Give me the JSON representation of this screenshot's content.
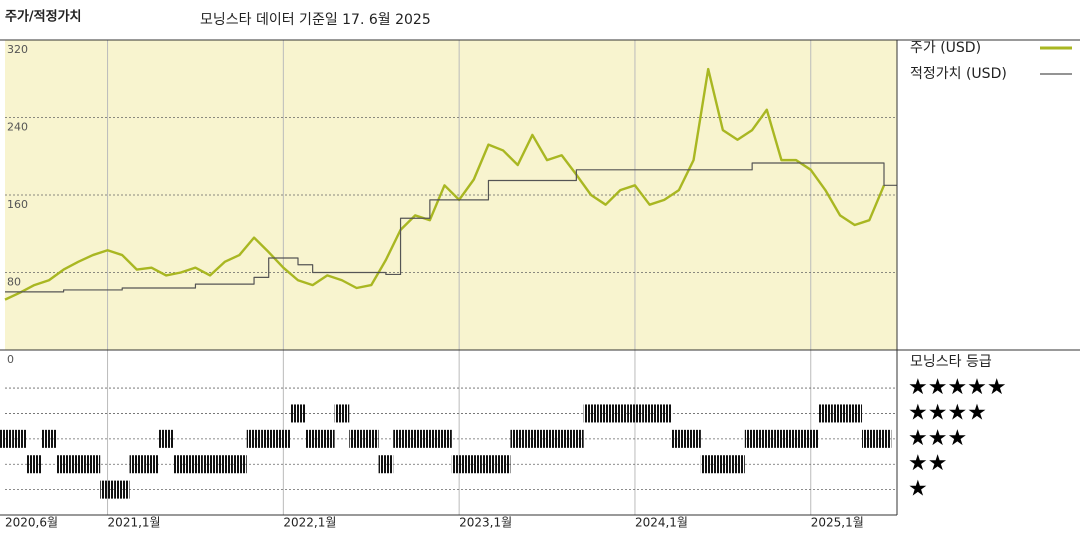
{
  "chart_data": [
    {
      "type": "line",
      "title": "주가/적정가치",
      "subtitle": "모닝스타 데이터 기준일 17. 6월 2025",
      "x": [
        "2020-06",
        "2020-07",
        "2020-08",
        "2020-09",
        "2020-10",
        "2020-11",
        "2020-12",
        "2021-01",
        "2021-02",
        "2021-03",
        "2021-04",
        "2021-05",
        "2021-06",
        "2021-07",
        "2021-08",
        "2021-09",
        "2021-10",
        "2021-11",
        "2021-12",
        "2022-01",
        "2022-02",
        "2022-03",
        "2022-04",
        "2022-05",
        "2022-06",
        "2022-07",
        "2022-08",
        "2022-09",
        "2022-10",
        "2022-11",
        "2022-12",
        "2023-01",
        "2023-02",
        "2023-03",
        "2023-04",
        "2023-05",
        "2023-06",
        "2023-07",
        "2023-08",
        "2023-09",
        "2023-10",
        "2023-11",
        "2023-12",
        "2024-01",
        "2024-02",
        "2024-03",
        "2024-04",
        "2024-05",
        "2024-06",
        "2024-07",
        "2024-08",
        "2024-09",
        "2024-10",
        "2024-11",
        "2024-12",
        "2025-01",
        "2025-02",
        "2025-03",
        "2025-04",
        "2025-05",
        "2025-06"
      ],
      "series": [
        {
          "name": "주가 (USD)",
          "color": "#a9b722",
          "values": [
            52,
            59,
            67,
            72,
            83,
            91,
            98,
            103,
            98,
            83,
            85,
            77,
            80,
            85,
            77,
            91,
            98,
            116,
            101,
            85,
            72,
            67,
            77,
            72,
            64,
            67,
            93,
            124,
            139,
            134,
            170,
            155,
            176,
            212,
            206,
            191,
            222,
            196,
            201,
            181,
            160,
            150,
            165,
            170,
            150,
            155,
            165,
            196,
            290,
            227,
            217,
            227,
            248,
            196,
            196,
            186,
            165,
            139,
            129,
            134,
            170
          ]
        },
        {
          "name": "적정가치 (USD)",
          "color": "#555555",
          "step": true,
          "values": [
            60,
            60,
            60,
            60,
            62,
            62,
            62,
            62,
            64,
            64,
            64,
            64,
            64,
            68,
            68,
            68,
            68,
            75,
            95,
            95,
            88,
            80,
            80,
            80,
            80,
            80,
            78,
            136,
            136,
            155,
            155,
            155,
            155,
            175,
            175,
            175,
            175,
            175,
            175,
            186,
            186,
            186,
            186,
            186,
            186,
            186,
            186,
            186,
            186,
            186,
            186,
            193,
            193,
            193,
            193,
            193,
            193,
            193,
            193,
            193,
            170
          ]
        }
      ],
      "xlim": [
        "2020-06",
        "2025-06"
      ],
      "xticks": [
        {
          "value": "2020-06",
          "label": "2020,6월"
        },
        {
          "value": "2021-01",
          "label": "2021,1월"
        },
        {
          "value": "2022-01",
          "label": "2022,1월"
        },
        {
          "value": "2023-01",
          "label": "2023,1월"
        },
        {
          "value": "2024-01",
          "label": "2024,1월"
        },
        {
          "value": "2025-01",
          "label": "2025,1월"
        }
      ],
      "ylim": [
        0,
        320
      ],
      "yticks": [
        0,
        80,
        160,
        240,
        320
      ],
      "grid": true,
      "background": "#f8f4cf"
    },
    {
      "type": "rating",
      "title": "모닝스타 등급",
      "values": [
        3,
        3,
        2,
        3,
        2,
        2,
        2,
        1,
        1,
        2,
        2,
        3,
        2,
        2,
        2,
        2,
        2,
        3,
        3,
        3,
        4,
        3,
        3,
        4,
        3,
        3,
        2,
        3,
        3,
        3,
        3,
        2,
        2,
        2,
        2,
        3,
        3,
        3,
        3,
        3,
        4,
        4,
        4,
        4,
        4,
        4,
        3,
        3,
        2,
        2,
        2,
        3,
        3,
        3,
        3,
        3,
        4,
        4,
        4,
        3,
        3
      ],
      "color": "#111111",
      "ylim": [
        0,
        6.5
      ],
      "yticks": [
        {
          "value": 5,
          "label": "★★★★★"
        },
        {
          "value": 4,
          "label": "★★★★"
        },
        {
          "value": 3,
          "label": "★★★"
        },
        {
          "value": 2,
          "label": "★★"
        },
        {
          "value": 1,
          "label": "★"
        }
      ]
    }
  ]
}
